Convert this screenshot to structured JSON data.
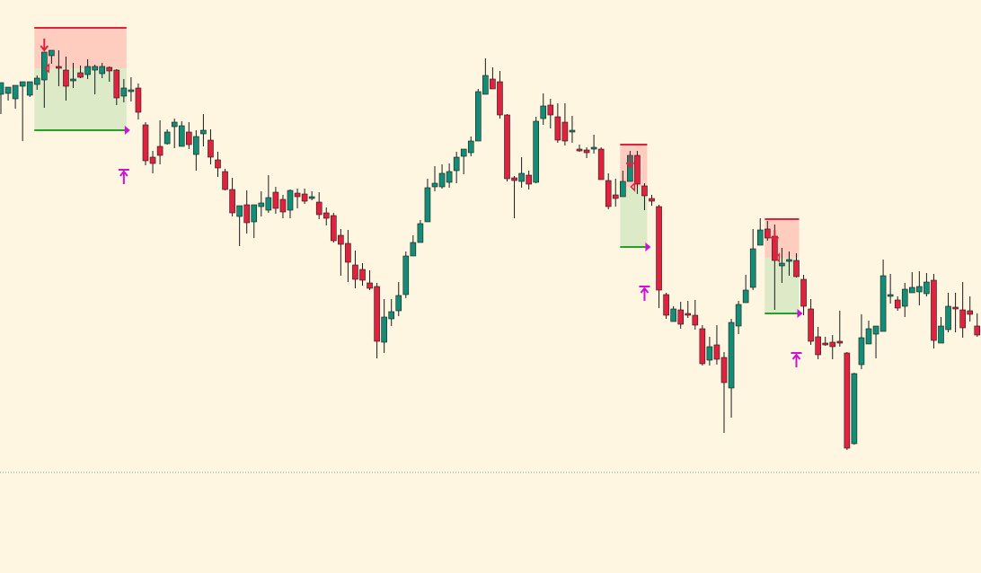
{
  "chart_data": {
    "type": "candlestick",
    "axis": {
      "price_range": [
        0,
        638
      ],
      "price_direction": "down"
    },
    "colors": {
      "background": "#FEF6E1",
      "bull": "#138D75",
      "bear": "#E0223F",
      "wick": "#1a1a1a",
      "stop_zone": "#FFCDC0",
      "target_zone": "#DCEAC8",
      "stop_line": "#E0223F",
      "target_line": "#26A125",
      "marker": "#D010D6",
      "signal_arrow": "#E0223F",
      "reference_line": "#7A9A9A"
    },
    "reference_line": {
      "price": 526,
      "style": "dotted"
    },
    "candles": [
      [
        0,
        105,
        92,
        127,
        118
      ],
      [
        1,
        104,
        97,
        112,
        103
      ],
      [
        2,
        110,
        95,
        121,
        98
      ],
      [
        3,
        96,
        91,
        157,
        105
      ],
      [
        4,
        106,
        91,
        108,
        97
      ],
      [
        5,
        94,
        87,
        100,
        84
      ],
      [
        6,
        89,
        58,
        120,
        61
      ],
      [
        7,
        62,
        56,
        71,
        60
      ],
      [
        8,
        74,
        75,
        96,
        56
      ],
      [
        9,
        78,
        96,
        112,
        63
      ],
      [
        10,
        89,
        88,
        98,
        70
      ],
      [
        11,
        81,
        86,
        87,
        73
      ],
      [
        12,
        83,
        74,
        88,
        66
      ],
      [
        13,
        78,
        74,
        105,
        72
      ],
      [
        14,
        82,
        74,
        87,
        70
      ],
      [
        15,
        75,
        79,
        91,
        74
      ],
      [
        16,
        78,
        109,
        117,
        77
      ],
      [
        17,
        107,
        98,
        114,
        88
      ],
      [
        18,
        102,
        100,
        113,
        86
      ],
      [
        19,
        98,
        125,
        133,
        93
      ],
      [
        20,
        139,
        179,
        184,
        136
      ],
      [
        21,
        175,
        182,
        193,
        168
      ],
      [
        22,
        163,
        173,
        183,
        134
      ],
      [
        23,
        160,
        147,
        161,
        144
      ],
      [
        24,
        141,
        136,
        165,
        132
      ],
      [
        25,
        163,
        140,
        146,
        135
      ],
      [
        26,
        147,
        161,
        166,
        136
      ],
      [
        27,
        172,
        152,
        190,
        145
      ],
      [
        28,
        149,
        145,
        163,
        127
      ],
      [
        29,
        156,
        175,
        183,
        144
      ],
      [
        30,
        178,
        187,
        197,
        169
      ],
      [
        31,
        191,
        211,
        212,
        188
      ],
      [
        32,
        211,
        237,
        241,
        198
      ],
      [
        33,
        241,
        229,
        274,
        232
      ],
      [
        34,
        228,
        248,
        260,
        212
      ],
      [
        35,
        247,
        228,
        265,
        229
      ],
      [
        36,
        230,
        226,
        241,
        213
      ],
      [
        37,
        234,
        220,
        237,
        195
      ],
      [
        38,
        214,
        232,
        238,
        208
      ],
      [
        39,
        222,
        236,
        243,
        217
      ],
      [
        40,
        234,
        212,
        243,
        211
      ],
      [
        41,
        215,
        219,
        232,
        210
      ],
      [
        42,
        216,
        224,
        227,
        210
      ],
      [
        43,
        220,
        219,
        223,
        213
      ],
      [
        44,
        225,
        239,
        244,
        214
      ],
      [
        45,
        237,
        243,
        251,
        231
      ],
      [
        46,
        240,
        268,
        270,
        237
      ],
      [
        47,
        262,
        272,
        307,
        255
      ],
      [
        48,
        271,
        292,
        314,
        256
      ],
      [
        49,
        295,
        311,
        321,
        279
      ],
      [
        50,
        300,
        312,
        318,
        293
      ],
      [
        51,
        315,
        321,
        323,
        301
      ],
      [
        52,
        319,
        380,
        399,
        315
      ],
      [
        53,
        381,
        353,
        393,
        333
      ],
      [
        54,
        355,
        347,
        363,
        333
      ],
      [
        55,
        346,
        329,
        352,
        314
      ],
      [
        56,
        328,
        285,
        332,
        280
      ],
      [
        57,
        285,
        270,
        283,
        262
      ],
      [
        58,
        270,
        249,
        270,
        245
      ],
      [
        59,
        247,
        209,
        247,
        199
      ],
      [
        60,
        208,
        204,
        213,
        185
      ],
      [
        61,
        208,
        193,
        210,
        183
      ],
      [
        62,
        203,
        191,
        209,
        182
      ],
      [
        63,
        190,
        175,
        204,
        169
      ],
      [
        64,
        174,
        166,
        194,
        167
      ],
      [
        65,
        170,
        157,
        174,
        152
      ],
      [
        66,
        157,
        102,
        157,
        99
      ],
      [
        67,
        105,
        84,
        104,
        65
      ],
      [
        68,
        88,
        99,
        97,
        75
      ],
      [
        69,
        91,
        128,
        132,
        79
      ],
      [
        70,
        128,
        199,
        202,
        127
      ],
      [
        71,
        198,
        201,
        243,
        196
      ],
      [
        72,
        202,
        193,
        209,
        175
      ],
      [
        73,
        195,
        205,
        211,
        190
      ],
      [
        74,
        203,
        135,
        204,
        130
      ],
      [
        75,
        132,
        118,
        139,
        104
      ],
      [
        76,
        117,
        128,
        143,
        110
      ],
      [
        77,
        130,
        156,
        159,
        115
      ],
      [
        78,
        136,
        157,
        162,
        115
      ],
      [
        79,
        146,
        145,
        159,
        129
      ],
      [
        80,
        166,
        168,
        169,
        161
      ],
      [
        81,
        167,
        170,
        176,
        164
      ],
      [
        82,
        166,
        164,
        171,
        150
      ],
      [
        83,
        166,
        200,
        200,
        164
      ],
      [
        84,
        201,
        230,
        233,
        193
      ],
      [
        85,
        217,
        221,
        230,
        199
      ],
      [
        86,
        219,
        202,
        203,
        190
      ],
      [
        87,
        202,
        173,
        202,
        168
      ],
      [
        88,
        173,
        205,
        216,
        168
      ],
      [
        89,
        207,
        218,
        234,
        204
      ],
      [
        90,
        221,
        224,
        229,
        217
      ],
      [
        91,
        230,
        323,
        343,
        228
      ],
      [
        92,
        328,
        351,
        355,
        326
      ],
      [
        93,
        358,
        344,
        357,
        341
      ],
      [
        94,
        345,
        361,
        366,
        336
      ],
      [
        95,
        349,
        350,
        354,
        335
      ],
      [
        96,
        351,
        362,
        367,
        334
      ],
      [
        97,
        366,
        405,
        407,
        362
      ],
      [
        98,
        401,
        386,
        407,
        375
      ],
      [
        99,
        384,
        400,
        406,
        362
      ],
      [
        100,
        398,
        426,
        482,
        392
      ],
      [
        101,
        432,
        359,
        465,
        355
      ],
      [
        102,
        363,
        339,
        372,
        335
      ],
      [
        103,
        337,
        323,
        336,
        306
      ],
      [
        104,
        320,
        277,
        323,
        255
      ],
      [
        105,
        273,
        256,
        267,
        243
      ],
      [
        106,
        255,
        265,
        268,
        246
      ],
      [
        107,
        263,
        290,
        345,
        250
      ],
      [
        108,
        296,
        293,
        315,
        276
      ],
      [
        109,
        291,
        289,
        307,
        280
      ],
      [
        110,
        290,
        308,
        309,
        282
      ],
      [
        111,
        311,
        341,
        351,
        306
      ],
      [
        112,
        344,
        380,
        384,
        333
      ],
      [
        113,
        375,
        395,
        400,
        364
      ],
      [
        114,
        382,
        382,
        385,
        375
      ],
      [
        115,
        381,
        386,
        400,
        373
      ],
      [
        116,
        380,
        381,
        386,
        346
      ],
      [
        117,
        393,
        499,
        501,
        392
      ],
      [
        118,
        494,
        416,
        495,
        415
      ],
      [
        119,
        406,
        376,
        411,
        350
      ],
      [
        120,
        383,
        366,
        378,
        357
      ],
      [
        121,
        372,
        363,
        399,
        370
      ],
      [
        122,
        369,
        307,
        335,
        289
      ],
      [
        123,
        329,
        328,
        338,
        305
      ],
      [
        124,
        334,
        343,
        346,
        330
      ],
      [
        125,
        341,
        322,
        353,
        315
      ],
      [
        126,
        326,
        320,
        325,
        303
      ],
      [
        127,
        325,
        319,
        340,
        302
      ],
      [
        128,
        327,
        314,
        330,
        304
      ],
      [
        129,
        312,
        379,
        388,
        305
      ],
      [
        130,
        382,
        363,
        379,
        353
      ],
      [
        131,
        367,
        341,
        370,
        326
      ],
      [
        132,
        342,
        344,
        370,
        326
      ],
      [
        133,
        345,
        365,
        376,
        314
      ],
      [
        134,
        346,
        350,
        358,
        330
      ],
      [
        135,
        363,
        373,
        375,
        349
      ]
    ],
    "trades": [
      {
        "entry_index": 19,
        "entry": 76,
        "stop": 31,
        "target": 145,
        "start_index": 5,
        "end_index": 17,
        "signal_index": 6,
        "marker_index": 17,
        "up_arrow_index": 17
      },
      {
        "entry_index": 88,
        "entry": 208,
        "stop": 161,
        "target": 275,
        "start_index": 86,
        "end_index": 89,
        "signal_index": 87,
        "marker_index": 89,
        "up_arrow_index": 89
      },
      {
        "entry_index": 108,
        "entry": 287,
        "stop": 244,
        "target": 349,
        "start_index": 106,
        "end_index": 110,
        "signal_index": 107,
        "marker_index": 110,
        "up_arrow_index": 110
      }
    ]
  }
}
